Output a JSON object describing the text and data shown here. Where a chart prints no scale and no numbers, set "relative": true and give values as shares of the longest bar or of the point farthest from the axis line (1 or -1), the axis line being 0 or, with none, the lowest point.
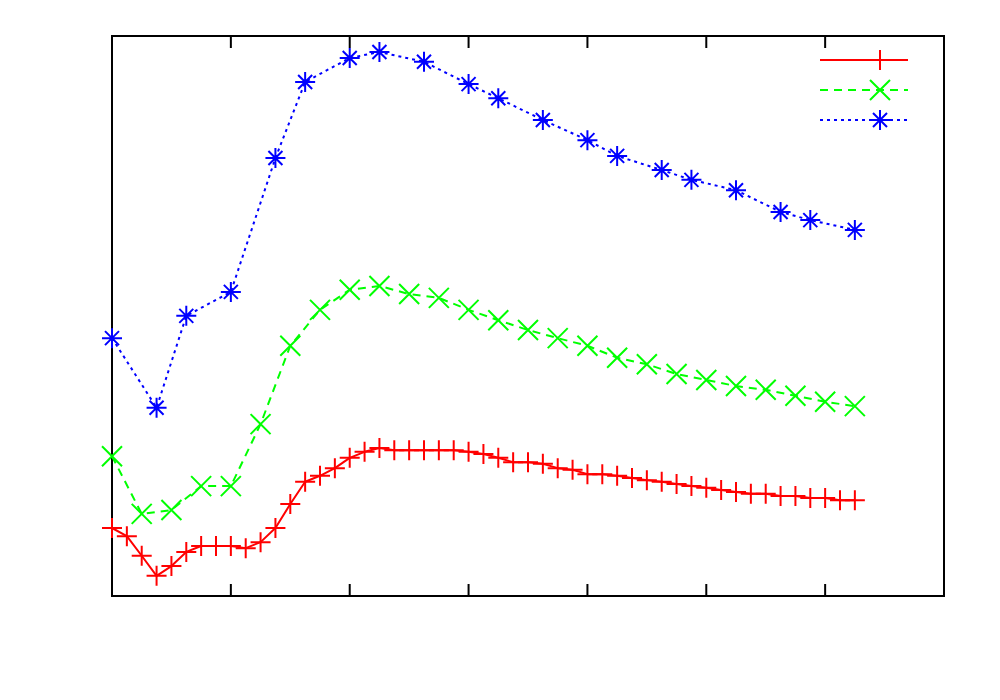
{
  "chart_data": {
    "type": "line",
    "relative": true,
    "tick_labels": false,
    "grid": false,
    "categories": [
      null,
      null,
      null,
      null,
      null,
      null,
      null,
      null,
      null,
      null,
      null,
      null,
      null,
      null,
      null,
      null,
      null,
      null,
      null,
      null,
      null,
      null,
      null,
      null,
      null,
      null,
      null,
      null,
      null,
      null,
      null,
      null,
      null,
      null,
      null,
      null,
      null,
      null,
      null,
      null,
      null,
      null,
      null,
      null,
      null,
      null,
      null,
      null,
      null,
      null,
      null
    ],
    "series": [
      {
        "color": "#ff0000",
        "marker": "plus",
        "line_style": "solid",
        "values": [
          0.125,
          0.11,
          0.074,
          0.037,
          0.055,
          0.081,
          0.092,
          0.092,
          0.092,
          0.088,
          0.099,
          0.125,
          0.169,
          0.21,
          0.221,
          0.235,
          0.254,
          0.265,
          0.272,
          0.268,
          0.268,
          0.268,
          0.268,
          0.268,
          0.265,
          0.261,
          0.254,
          0.246,
          0.246,
          0.243,
          0.235,
          0.232,
          0.224,
          0.224,
          0.221,
          0.217,
          0.213,
          0.21,
          0.206,
          0.202,
          0.199,
          0.195,
          0.191,
          0.188,
          0.188,
          0.184,
          0.184,
          0.18,
          0.18,
          0.176,
          0.176
        ]
      },
      {
        "color": "#00ff00",
        "marker": "x",
        "line_style": "dashed",
        "values": [
          0.257,
          null,
          0.151,
          null,
          0.158,
          null,
          0.202,
          null,
          0.202,
          null,
          0.316,
          null,
          0.46,
          null,
          0.526,
          null,
          0.563,
          null,
          0.57,
          null,
          0.555,
          null,
          0.548,
          null,
          0.526,
          null,
          0.507,
          null,
          0.489,
          null,
          0.474,
          null,
          0.46,
          null,
          0.438,
          null,
          0.426,
          null,
          0.408,
          null,
          0.397,
          null,
          0.386,
          null,
          0.379,
          null,
          0.368,
          null,
          0.357,
          null,
          0.349
        ]
      },
      {
        "color": "#0000ff",
        "marker": "cross",
        "line_style": "dotted",
        "values": [
          0.474,
          null,
          null,
          0.346,
          null,
          0.515,
          null,
          null,
          0.559,
          null,
          null,
          0.805,
          null,
          0.945,
          null,
          null,
          0.989,
          null,
          1,
          null,
          null,
          0.982,
          null,
          null,
          0.941,
          null,
          0.915,
          null,
          null,
          0.875,
          null,
          null,
          0.838,
          null,
          0.809,
          null,
          null,
          0.783,
          null,
          0.765,
          null,
          null,
          0.746,
          null,
          null,
          0.706,
          null,
          0.691,
          null,
          null,
          0.673
        ]
      }
    ]
  }
}
